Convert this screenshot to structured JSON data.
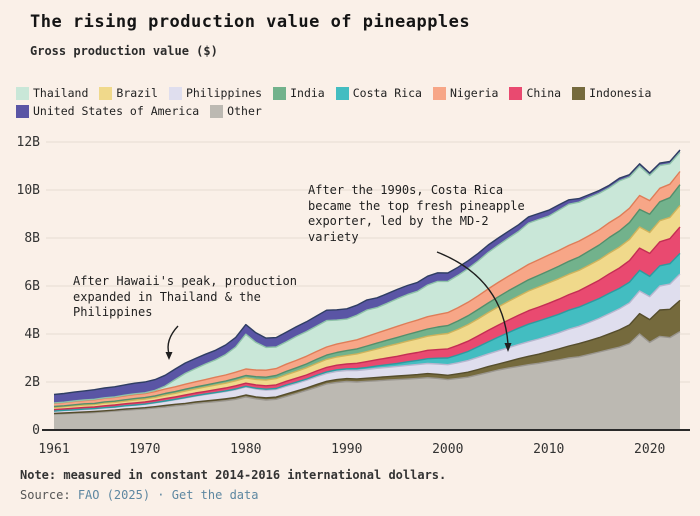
{
  "header": {
    "title": "The rising production value of pineapples",
    "subtitle": "Gross production value ($)"
  },
  "legend": {
    "items": [
      {
        "label": "Thailand",
        "color": "#c9e7d8"
      },
      {
        "label": "Brazil",
        "color": "#f0d98b"
      },
      {
        "label": "Philippines",
        "color": "#dfdeee"
      },
      {
        "label": "India",
        "color": "#72b28c"
      },
      {
        "label": "Costa Rica",
        "color": "#43bdc1"
      },
      {
        "label": "Nigeria",
        "color": "#f7a687"
      },
      {
        "label": "China",
        "color": "#e94a70"
      },
      {
        "label": "Indonesia",
        "color": "#756a3d"
      },
      {
        "label": "United States of America",
        "color": "#5a55a5"
      },
      {
        "label": "Other",
        "color": "#bcb9b2"
      }
    ]
  },
  "annotations": {
    "hawaii": {
      "text": "After Hawaii's peak, production\nexpanded in Thailand & the\nPhilippines"
    },
    "costa_rica": {
      "text": "After the 1990s, Costa Rica\nbecame the top fresh pineapple\nexporter, led by the MD-2\nvariety"
    }
  },
  "footer": {
    "note": "Note: measured in constant 2014-2016 international dollars.",
    "source_label": "Source:",
    "fao_link": "FAO (2025)",
    "separator": "·",
    "get_data_link": "Get the data",
    "link_color": "#5d87a1"
  },
  "chart_data": {
    "type": "area",
    "stacked": true,
    "title": "Gross production value ($)",
    "unit": "billion constant 2014-2016 international dollars",
    "ylim": [
      0,
      12.6
    ],
    "grid": true,
    "x_ticks": [
      1961,
      1970,
      1980,
      1990,
      2000,
      2010,
      2020
    ],
    "y_ticks": [
      {
        "value": 0,
        "label": "0"
      },
      {
        "value": 2,
        "label": "2B"
      },
      {
        "value": 4,
        "label": "4B"
      },
      {
        "value": 6,
        "label": "6B"
      },
      {
        "value": 8,
        "label": "8B"
      },
      {
        "value": 10,
        "label": "10B"
      },
      {
        "value": 12,
        "label": "12B"
      }
    ],
    "x": [
      1961,
      1962,
      1963,
      1964,
      1965,
      1966,
      1967,
      1968,
      1969,
      1970,
      1971,
      1972,
      1973,
      1974,
      1975,
      1976,
      1977,
      1978,
      1979,
      1980,
      1981,
      1982,
      1983,
      1984,
      1985,
      1986,
      1987,
      1988,
      1989,
      1990,
      1991,
      1992,
      1993,
      1994,
      1995,
      1996,
      1997,
      1998,
      1999,
      2000,
      2001,
      2002,
      2003,
      2004,
      2005,
      2006,
      2007,
      2008,
      2009,
      2010,
      2011,
      2012,
      2013,
      2014,
      2015,
      2016,
      2017,
      2018,
      2019,
      2020,
      2021,
      2022,
      2023
    ],
    "series_bottom_to_top": [
      {
        "name": "Other",
        "color": "#bcb9b2",
        "stroke": "#9a968f",
        "values": [
          0.66,
          0.68,
          0.7,
          0.71,
          0.73,
          0.76,
          0.79,
          0.82,
          0.85,
          0.88,
          0.92,
          0.96,
          1.01,
          1.05,
          1.1,
          1.14,
          1.18,
          1.22,
          1.28,
          1.38,
          1.3,
          1.25,
          1.28,
          1.4,
          1.52,
          1.65,
          1.78,
          1.92,
          1.98,
          2.02,
          2.0,
          2.03,
          2.05,
          2.08,
          2.1,
          2.12,
          2.15,
          2.18,
          2.15,
          2.1,
          2.15,
          2.2,
          2.3,
          2.4,
          2.5,
          2.58,
          2.65,
          2.72,
          2.78,
          2.85,
          2.92,
          3.0,
          3.05,
          3.15,
          3.25,
          3.35,
          3.45,
          3.6,
          4.0,
          3.65,
          3.9,
          3.85,
          4.1
        ]
      },
      {
        "name": "Indonesia",
        "color": "#756a3d",
        "stroke": "#554d2c",
        "values": [
          0.03,
          0.03,
          0.03,
          0.04,
          0.04,
          0.04,
          0.04,
          0.05,
          0.05,
          0.05,
          0.05,
          0.06,
          0.06,
          0.06,
          0.07,
          0.07,
          0.07,
          0.08,
          0.08,
          0.08,
          0.08,
          0.09,
          0.09,
          0.1,
          0.1,
          0.1,
          0.11,
          0.11,
          0.12,
          0.12,
          0.13,
          0.13,
          0.14,
          0.14,
          0.15,
          0.16,
          0.16,
          0.17,
          0.17,
          0.18,
          0.19,
          0.21,
          0.22,
          0.24,
          0.25,
          0.28,
          0.32,
          0.35,
          0.38,
          0.42,
          0.46,
          0.5,
          0.55,
          0.57,
          0.6,
          0.66,
          0.72,
          0.78,
          0.85,
          0.95,
          1.1,
          1.18,
          1.3
        ]
      },
      {
        "name": "Philippines",
        "color": "#dfdeee",
        "stroke": "#b7b6ce",
        "values": [
          0.09,
          0.1,
          0.1,
          0.11,
          0.11,
          0.12,
          0.12,
          0.13,
          0.13,
          0.14,
          0.16,
          0.17,
          0.19,
          0.22,
          0.24,
          0.27,
          0.29,
          0.3,
          0.32,
          0.33,
          0.33,
          0.32,
          0.32,
          0.32,
          0.32,
          0.32,
          0.33,
          0.33,
          0.34,
          0.34,
          0.35,
          0.36,
          0.38,
          0.39,
          0.4,
          0.41,
          0.42,
          0.42,
          0.43,
          0.44,
          0.46,
          0.48,
          0.51,
          0.53,
          0.55,
          0.57,
          0.59,
          0.61,
          0.63,
          0.65,
          0.67,
          0.7,
          0.72,
          0.76,
          0.8,
          0.84,
          0.88,
          0.92,
          0.94,
          0.96,
          1.0,
          1.05,
          1.1
        ]
      },
      {
        "name": "Costa Rica",
        "color": "#43bdc1",
        "stroke": "#2d9b9f",
        "values": [
          0.01,
          0.01,
          0.01,
          0.01,
          0.01,
          0.01,
          0.01,
          0.01,
          0.01,
          0.01,
          0.01,
          0.02,
          0.02,
          0.02,
          0.02,
          0.02,
          0.02,
          0.03,
          0.03,
          0.03,
          0.03,
          0.04,
          0.04,
          0.05,
          0.05,
          0.05,
          0.06,
          0.06,
          0.07,
          0.07,
          0.08,
          0.09,
          0.1,
          0.11,
          0.12,
          0.15,
          0.17,
          0.2,
          0.24,
          0.28,
          0.33,
          0.38,
          0.44,
          0.5,
          0.57,
          0.63,
          0.68,
          0.73,
          0.75,
          0.76,
          0.77,
          0.79,
          0.8,
          0.82,
          0.83,
          0.85,
          0.85,
          0.86,
          0.86,
          0.84,
          0.84,
          0.85,
          0.86
        ]
      },
      {
        "name": "China",
        "color": "#e94a70",
        "stroke": "#c42e54",
        "values": [
          0.06,
          0.06,
          0.07,
          0.07,
          0.07,
          0.08,
          0.08,
          0.08,
          0.09,
          0.09,
          0.09,
          0.1,
          0.1,
          0.11,
          0.11,
          0.11,
          0.12,
          0.12,
          0.13,
          0.13,
          0.14,
          0.14,
          0.15,
          0.16,
          0.17,
          0.17,
          0.18,
          0.19,
          0.19,
          0.2,
          0.22,
          0.24,
          0.26,
          0.28,
          0.3,
          0.32,
          0.33,
          0.35,
          0.36,
          0.38,
          0.4,
          0.43,
          0.45,
          0.48,
          0.5,
          0.52,
          0.54,
          0.56,
          0.58,
          0.6,
          0.63,
          0.65,
          0.68,
          0.72,
          0.76,
          0.81,
          0.85,
          0.9,
          0.93,
          0.96,
          1.0,
          1.04,
          1.1
        ]
      },
      {
        "name": "Brazil",
        "color": "#f0d98b",
        "stroke": "#cfb35c",
        "values": [
          0.09,
          0.09,
          0.1,
          0.1,
          0.1,
          0.11,
          0.11,
          0.11,
          0.12,
          0.12,
          0.13,
          0.14,
          0.15,
          0.16,
          0.17,
          0.18,
          0.19,
          0.2,
          0.21,
          0.22,
          0.23,
          0.24,
          0.26,
          0.27,
          0.28,
          0.3,
          0.31,
          0.33,
          0.34,
          0.36,
          0.39,
          0.42,
          0.45,
          0.49,
          0.52,
          0.54,
          0.57,
          0.59,
          0.62,
          0.64,
          0.66,
          0.69,
          0.71,
          0.74,
          0.76,
          0.78,
          0.8,
          0.82,
          0.84,
          0.85,
          0.85,
          0.85,
          0.85,
          0.85,
          0.85,
          0.86,
          0.87,
          0.88,
          0.88,
          0.87,
          0.88,
          0.89,
          0.9
        ]
      },
      {
        "name": "India",
        "color": "#72b28c",
        "stroke": "#538f6c",
        "values": [
          0.04,
          0.04,
          0.04,
          0.05,
          0.05,
          0.05,
          0.05,
          0.06,
          0.06,
          0.06,
          0.06,
          0.07,
          0.07,
          0.08,
          0.08,
          0.08,
          0.09,
          0.09,
          0.1,
          0.1,
          0.11,
          0.12,
          0.13,
          0.14,
          0.15,
          0.16,
          0.17,
          0.18,
          0.19,
          0.2,
          0.21,
          0.23,
          0.24,
          0.25,
          0.27,
          0.28,
          0.29,
          0.3,
          0.32,
          0.33,
          0.35,
          0.37,
          0.39,
          0.4,
          0.42,
          0.44,
          0.45,
          0.47,
          0.48,
          0.5,
          0.52,
          0.54,
          0.56,
          0.59,
          0.62,
          0.65,
          0.67,
          0.7,
          0.73,
          0.76,
          0.79,
          0.82,
          0.86
        ]
      },
      {
        "name": "Nigeria",
        "color": "#f7a687",
        "stroke": "#df7d58",
        "values": [
          0.13,
          0.13,
          0.14,
          0.14,
          0.15,
          0.15,
          0.16,
          0.16,
          0.17,
          0.17,
          0.18,
          0.19,
          0.2,
          0.21,
          0.22,
          0.23,
          0.24,
          0.25,
          0.26,
          0.27,
          0.28,
          0.29,
          0.29,
          0.3,
          0.31,
          0.32,
          0.33,
          0.34,
          0.35,
          0.36,
          0.38,
          0.4,
          0.42,
          0.44,
          0.46,
          0.48,
          0.49,
          0.51,
          0.52,
          0.54,
          0.55,
          0.56,
          0.57,
          0.59,
          0.6,
          0.61,
          0.62,
          0.64,
          0.65,
          0.66,
          0.66,
          0.66,
          0.66,
          0.64,
          0.63,
          0.62,
          0.61,
          0.6,
          0.58,
          0.57,
          0.56,
          0.56,
          0.55
        ]
      },
      {
        "name": "Thailand",
        "color": "#c9e7d8",
        "stroke": "#8fc3a9",
        "values": [
          0.02,
          0.02,
          0.02,
          0.02,
          0.02,
          0.02,
          0.02,
          0.03,
          0.03,
          0.03,
          0.05,
          0.12,
          0.3,
          0.45,
          0.55,
          0.65,
          0.72,
          0.85,
          1.05,
          1.45,
          1.15,
          0.95,
          0.9,
          0.93,
          1.0,
          1.03,
          1.06,
          1.1,
          1.0,
          0.95,
          1.02,
          1.1,
          1.06,
          1.1,
          1.15,
          1.18,
          1.2,
          1.32,
          1.38,
          1.3,
          1.35,
          1.4,
          1.45,
          1.52,
          1.55,
          1.58,
          1.62,
          1.72,
          1.68,
          1.62,
          1.68,
          1.72,
          1.62,
          1.58,
          1.52,
          1.45,
          1.48,
          1.3,
          1.22,
          1.05,
          0.95,
          0.85,
          0.8
        ]
      },
      {
        "name": "United States of America",
        "color": "#5a55a5",
        "stroke": "#2f3e63",
        "values": [
          0.35,
          0.36,
          0.37,
          0.38,
          0.4,
          0.41,
          0.42,
          0.43,
          0.44,
          0.45,
          0.45,
          0.45,
          0.44,
          0.43,
          0.42,
          0.41,
          0.4,
          0.4,
          0.4,
          0.4,
          0.4,
          0.39,
          0.39,
          0.4,
          0.4,
          0.41,
          0.42,
          0.43,
          0.43,
          0.43,
          0.42,
          0.42,
          0.41,
          0.4,
          0.39,
          0.38,
          0.37,
          0.37,
          0.36,
          0.35,
          0.34,
          0.33,
          0.32,
          0.31,
          0.3,
          0.29,
          0.28,
          0.26,
          0.25,
          0.25,
          0.22,
          0.18,
          0.15,
          0.13,
          0.12,
          0.11,
          0.11,
          0.1,
          0.1,
          0.1,
          0.1,
          0.1,
          0.1
        ]
      }
    ]
  }
}
